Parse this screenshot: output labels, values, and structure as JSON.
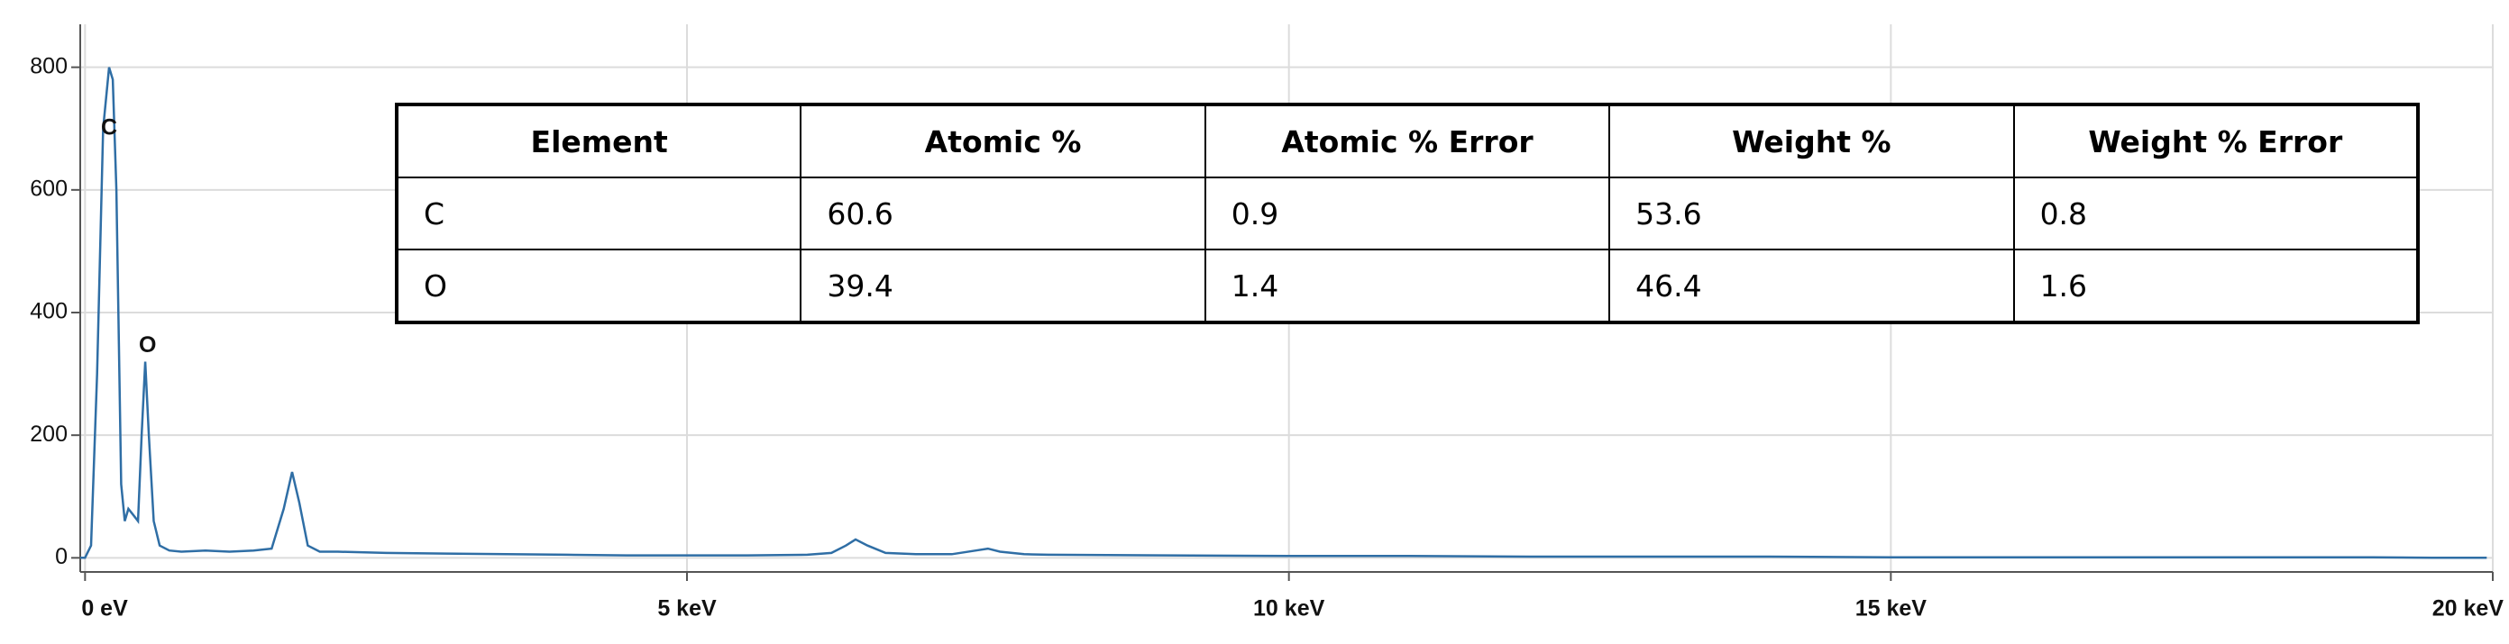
{
  "chart_data": {
    "type": "line",
    "x": [
      -0.04,
      0.0,
      0.05,
      0.1,
      0.15,
      0.2,
      0.23,
      0.26,
      0.3,
      0.33,
      0.36,
      0.4,
      0.44,
      0.47,
      0.5,
      0.53,
      0.57,
      0.62,
      0.7,
      0.8,
      1.0,
      1.2,
      1.4,
      1.55,
      1.65,
      1.72,
      1.78,
      1.85,
      1.95,
      2.1,
      2.5,
      3,
      3.5,
      4,
      4.5,
      5,
      5.5,
      6,
      6.2,
      6.32,
      6.4,
      6.5,
      6.65,
      6.9,
      7.2,
      7.4,
      7.5,
      7.6,
      7.8,
      8,
      9,
      10,
      11,
      12,
      13,
      14,
      15,
      16,
      17,
      18,
      19,
      19.5,
      19.95
    ],
    "series": [
      {
        "color": "#2f6ea5",
        "values": [
          0,
          0,
          20,
          300,
          700,
          800,
          780,
          600,
          120,
          60,
          80,
          70,
          60,
          200,
          320,
          200,
          60,
          20,
          12,
          10,
          12,
          10,
          12,
          15,
          80,
          140,
          90,
          20,
          10,
          10,
          8,
          7,
          6,
          5,
          4,
          4,
          4,
          5,
          8,
          20,
          30,
          20,
          8,
          6,
          6,
          12,
          15,
          10,
          6,
          5,
          4,
          3,
          3,
          2,
          2,
          2,
          1,
          1,
          1,
          1,
          1,
          0,
          0
        ]
      }
    ],
    "xlim": [
      -0.04,
      20
    ],
    "xticks": [
      {
        "value": 0,
        "label": "0 eV"
      },
      {
        "value": 5,
        "label": "5 keV"
      },
      {
        "value": 10,
        "label": "10 keV"
      },
      {
        "value": 15,
        "label": "15 keV"
      },
      {
        "value": 20,
        "label": "20 keV"
      }
    ],
    "ylim": [
      -23,
      870
    ],
    "yticks": [
      0,
      200,
      400,
      600,
      800
    ],
    "grid": true,
    "annotations": [
      {
        "text": "C",
        "x": 0.2,
        "y": 700
      },
      {
        "text": "O",
        "x": 0.52,
        "y": 345
      }
    ]
  },
  "table": {
    "headers": [
      "Element",
      "Atomic %",
      "Atomic % Error",
      "Weight %",
      "Weight % Error"
    ],
    "rows": [
      [
        "C",
        "60.6",
        "0.9",
        "53.6",
        "0.8"
      ],
      [
        "O",
        "39.4",
        "1.4",
        "46.4",
        "1.6"
      ]
    ]
  }
}
